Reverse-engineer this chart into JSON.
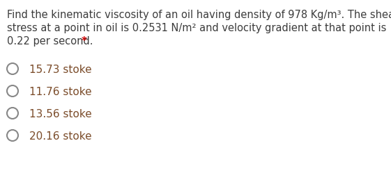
{
  "question_line1": "Find the kinematic viscosity of an oil having density of 978 Kg/m³. The shear",
  "question_line2": "stress at a point in oil is 0.2531 N/m² and velocity gradient at that point is",
  "question_line3": "0.22 per second.",
  "asterisk": "*",
  "options": [
    "15.73 stoke",
    "11.76 stoke",
    "13.56 stoke",
    "20.16 stoke"
  ],
  "text_color": "#3c3c3c",
  "asterisk_color": "#cc0000",
  "option_color": "#7b4c2a",
  "bg_color": "#ffffff",
  "question_fontsize": 10.5,
  "option_fontsize": 11.0,
  "circle_color": "#888888"
}
